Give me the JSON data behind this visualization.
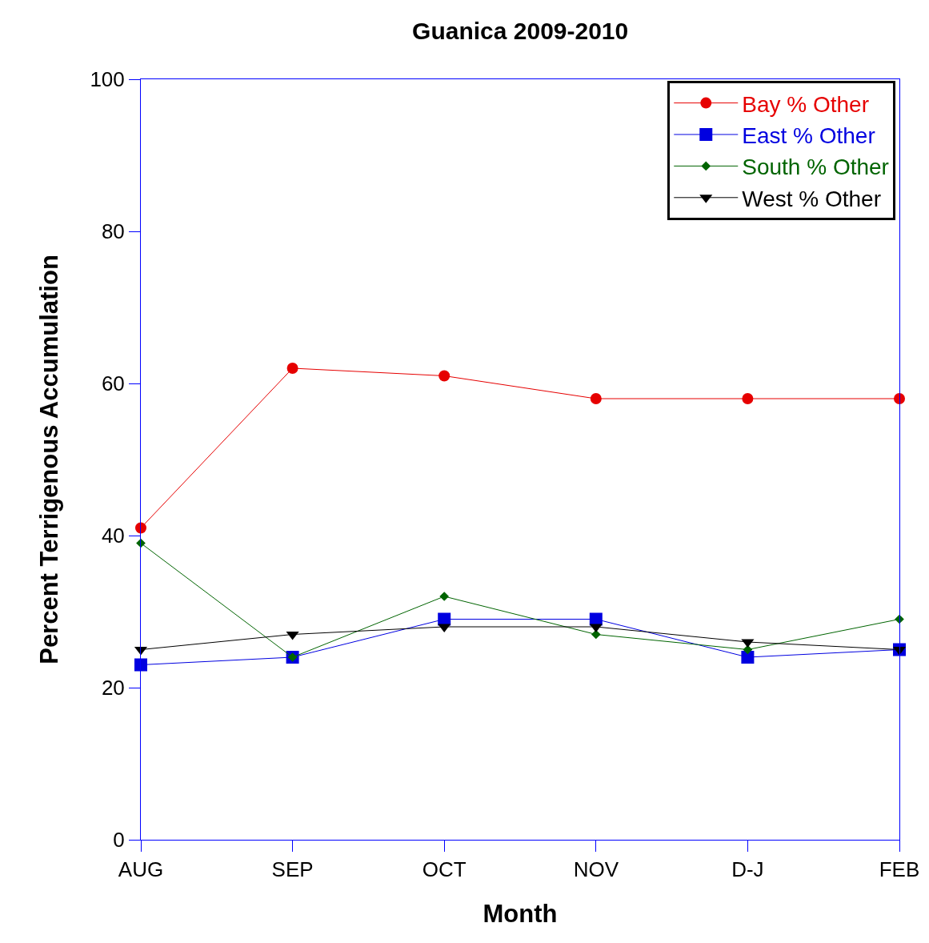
{
  "chart_data": {
    "type": "line",
    "title": "Guanica 2009-2010",
    "xlabel": "Month",
    "ylabel": "Percent Terrigenous Accumulation",
    "categories": [
      "AUG",
      "SEP",
      "OCT",
      "NOV",
      "D-J",
      "FEB"
    ],
    "series": [
      {
        "name": "Bay % Other",
        "color": "#e60000",
        "marker": "circle",
        "values": [
          41,
          62,
          61,
          58,
          58,
          58
        ]
      },
      {
        "name": "East % Other",
        "color": "#0000e0",
        "marker": "square",
        "values": [
          23,
          24,
          29,
          29,
          24,
          25
        ]
      },
      {
        "name": "South % Other",
        "color": "#006400",
        "marker": "diamond",
        "values": [
          39,
          24,
          32,
          27,
          25,
          29
        ]
      },
      {
        "name": "West % Other",
        "color": "#000000",
        "marker": "triangle-down",
        "values": [
          25,
          27,
          28,
          28,
          26,
          25
        ]
      }
    ],
    "ylim": [
      0,
      100
    ],
    "yticks": [
      0,
      20,
      40,
      60,
      80,
      100
    ],
    "legend": "top right",
    "line_style": "solid"
  }
}
